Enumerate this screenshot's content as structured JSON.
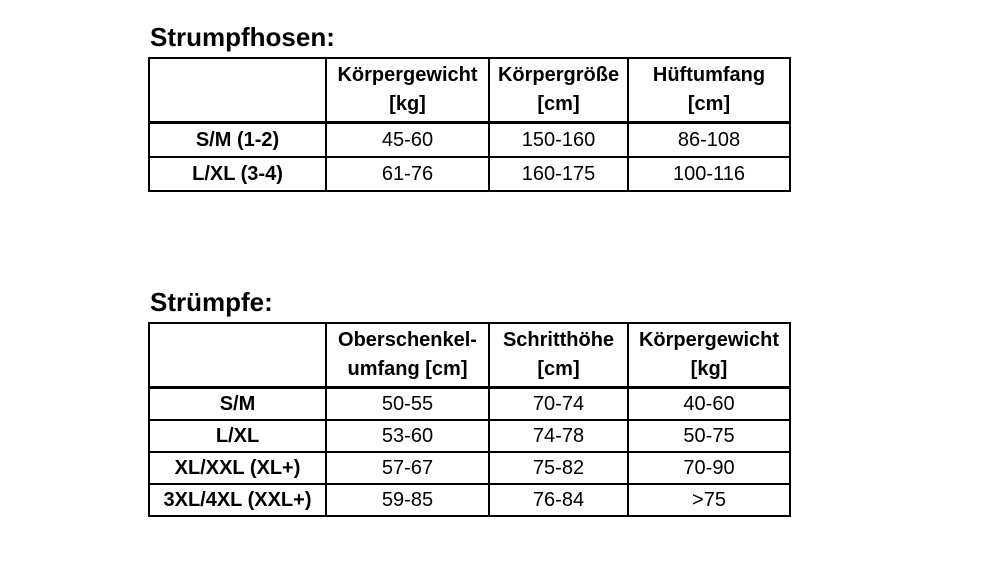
{
  "page": {
    "background": "#ffffff",
    "text_color": "#000000",
    "border_color": "#000000"
  },
  "tables": [
    {
      "title": "Strumpfhosen:",
      "columns": [
        [
          "",
          ""
        ],
        [
          "Körpergewicht",
          "[kg]"
        ],
        [
          "Körpergröße",
          "[cm]"
        ],
        [
          "Hüftumfang",
          "[cm]"
        ]
      ],
      "rows": [
        {
          "label": "S/M (1-2)",
          "values": [
            "45-60",
            "150-160",
            "86-108"
          ]
        },
        {
          "label": "L/XL (3-4)",
          "values": [
            "61-76",
            "160-175",
            "100-116"
          ]
        }
      ]
    },
    {
      "title": "Strümpfe:",
      "columns": [
        [
          "",
          ""
        ],
        [
          "Oberschenkel-",
          "umfang [cm]"
        ],
        [
          "Schritthöhe",
          "[cm]"
        ],
        [
          "Körpergewicht",
          "[kg]"
        ]
      ],
      "rows": [
        {
          "label": "S/M",
          "values": [
            "50-55",
            "70-74",
            "40-60"
          ]
        },
        {
          "label": "L/XL",
          "values": [
            "53-60",
            "74-78",
            "50-75"
          ]
        },
        {
          "label": "XL/XXL (XL+)",
          "values": [
            "57-67",
            "75-82",
            "70-90"
          ]
        },
        {
          "label": "3XL/4XL (XXL+)",
          "values": [
            "59-85",
            "76-84",
            ">75"
          ]
        }
      ]
    }
  ]
}
